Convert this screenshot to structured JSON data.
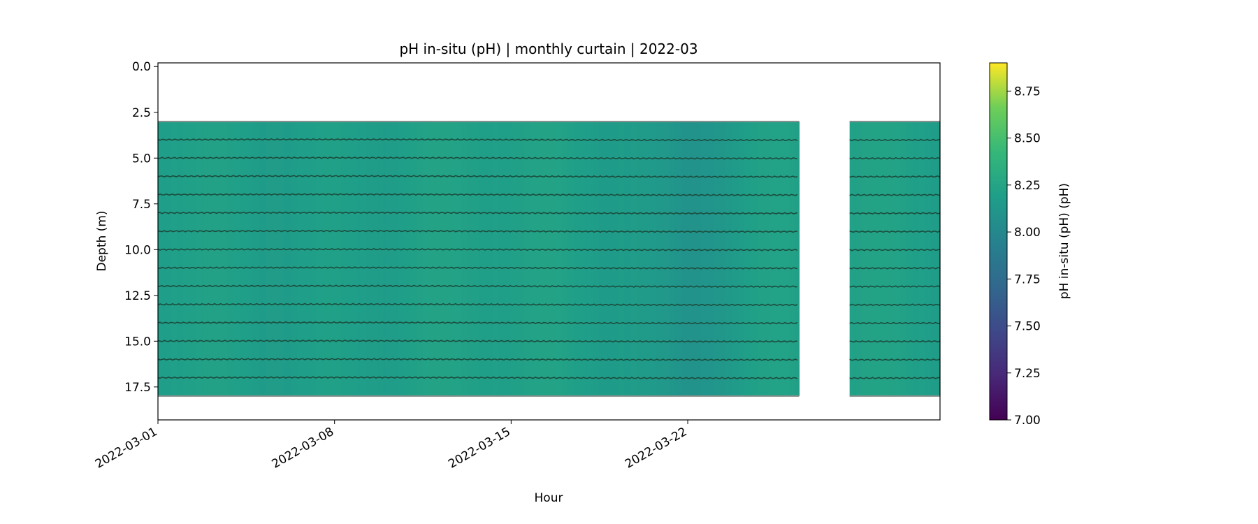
{
  "chart_data": {
    "type": "heatmap",
    "title": "pH in-situ (pH) | monthly curtain | 2022-03",
    "xlabel": "Hour",
    "ylabel": "Depth (m)",
    "colorbar_label": "pH in-situ (pH) (pH)",
    "colormap": "viridis",
    "xlim": [
      "2022-03-01",
      "2022-04-01"
    ],
    "x_ticks": [
      "2022-03-01",
      "2022-03-08",
      "2022-03-15",
      "2022-03-22"
    ],
    "ylim": [
      19.3,
      -0.2
    ],
    "y_ticks": [
      0.0,
      2.5,
      5.0,
      7.5,
      10.0,
      12.5,
      15.0,
      17.5
    ],
    "y_tick_labels": [
      "0.0",
      "2.5",
      "5.0",
      "7.5",
      "10.0",
      "12.5",
      "15.0",
      "17.5"
    ],
    "clim": [
      7.0,
      8.9
    ],
    "colorbar_ticks": [
      7.0,
      7.25,
      7.5,
      7.75,
      8.0,
      8.25,
      8.5,
      8.75
    ],
    "colorbar_tick_labels": [
      "7.00",
      "7.25",
      "7.50",
      "7.75",
      "8.00",
      "8.25",
      "8.50",
      "8.75"
    ],
    "data_segments": [
      {
        "start": "2022-03-01",
        "end": "2022-03-26T10:00",
        "depth_top": 3.0,
        "depth_bottom": 18.0
      },
      {
        "start": "2022-03-28T10:00",
        "end": "2022-04-01",
        "depth_top": 3.0,
        "depth_bottom": 18.0
      }
    ],
    "sensor_depths": [
      4,
      5,
      6,
      7,
      8,
      9,
      10,
      11,
      12,
      13,
      14,
      15,
      16,
      17
    ],
    "background_ph": 8.2,
    "low_ph_period": {
      "start": "2022-03-20",
      "end": "2022-03-23T12:00",
      "ph": 8.1
    }
  }
}
